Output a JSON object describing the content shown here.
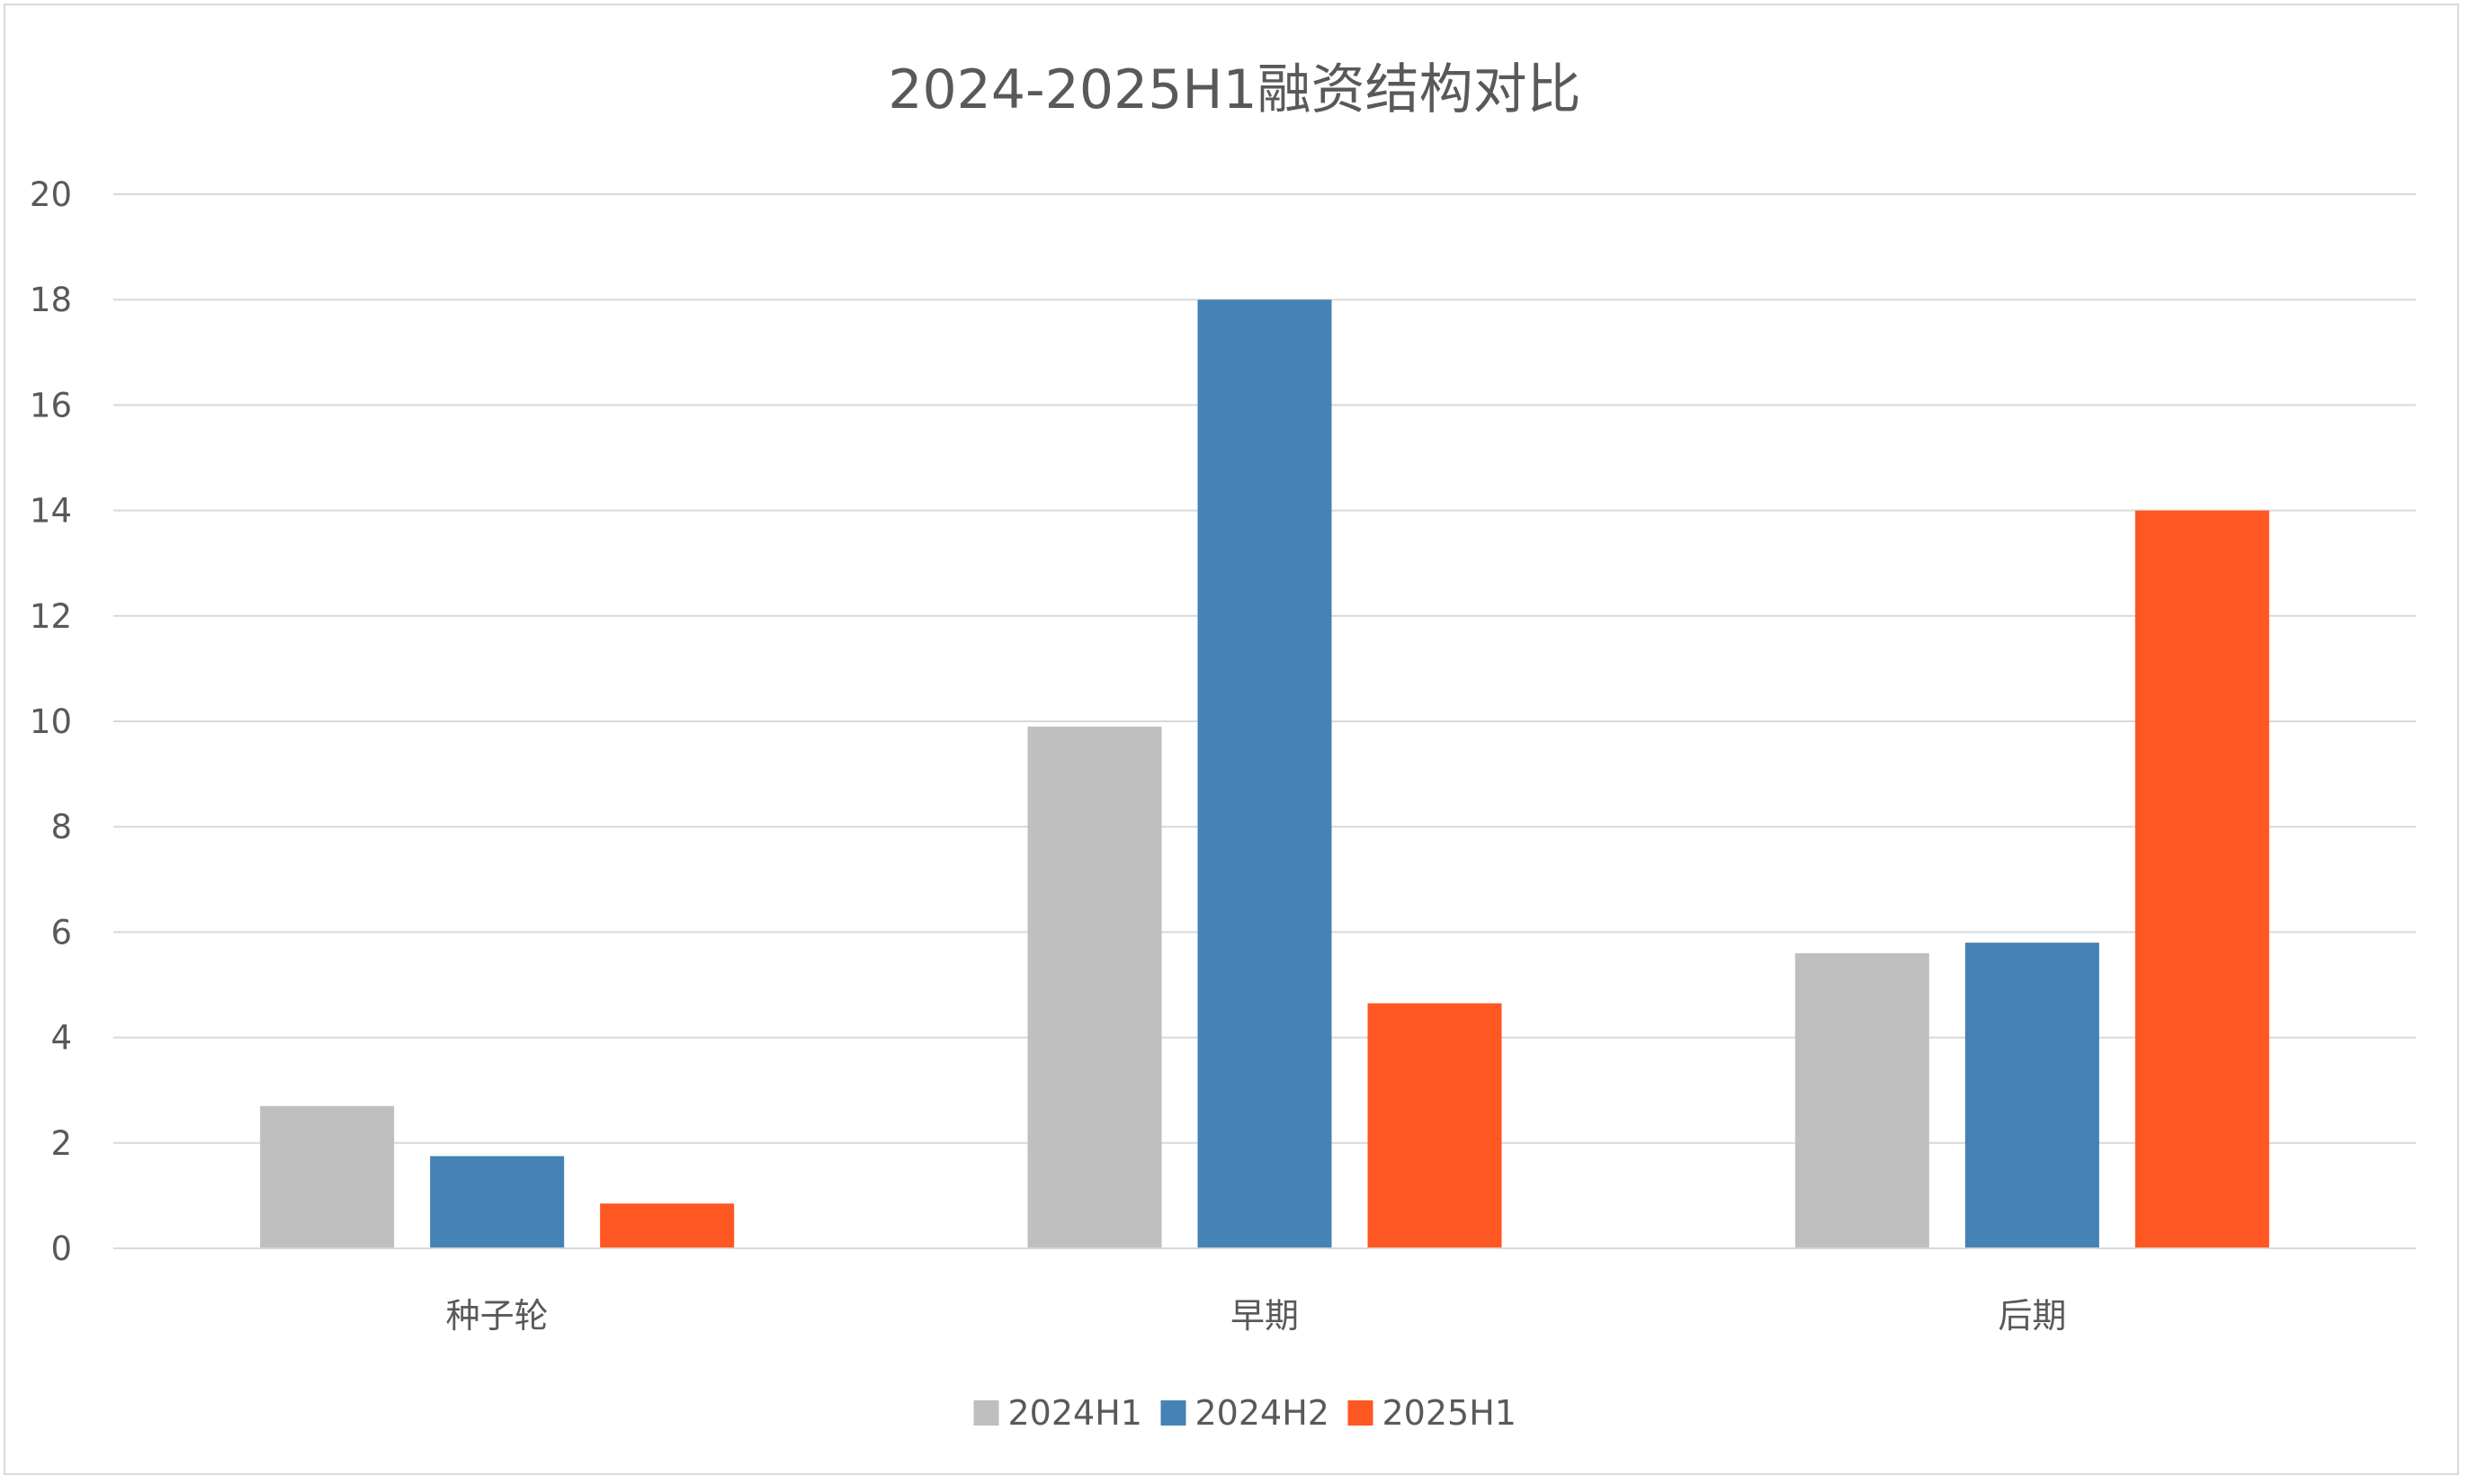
{
  "chart_data": {
    "type": "bar",
    "title": "2024-2025H1融资结构对比",
    "xlabel": "",
    "ylabel": "",
    "categories": [
      "种子轮",
      "早期",
      "后期"
    ],
    "series": [
      {
        "name": "2024H1",
        "color": "#bfbfbf",
        "values": [
          2.7,
          9.9,
          5.6
        ]
      },
      {
        "name": "2024H2",
        "color": "#4682b4",
        "values": [
          1.75,
          18,
          5.8
        ]
      },
      {
        "name": "2025H1",
        "color": "#ff5722",
        "values": [
          0.85,
          4.65,
          14
        ]
      }
    ],
    "ylim": [
      0,
      20
    ],
    "yticks": [
      0,
      2,
      4,
      6,
      8,
      10,
      12,
      14,
      16,
      18,
      20
    ],
    "grid": true,
    "legend_position": "bottom-center"
  }
}
